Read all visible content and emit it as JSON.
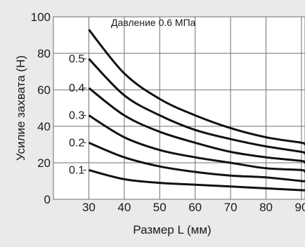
{
  "chart_data": {
    "type": "line",
    "annotation": "Давление 0.6 МПа",
    "xlabel": "Размер L (мм)",
    "ylabel": "Усилие захвата (Н)",
    "xlim": [
      20,
      91
    ],
    "ylim": [
      0,
      100
    ],
    "xticks": [
      "30",
      "40",
      "50",
      "60",
      "70",
      "80",
      "90"
    ],
    "yticks": [
      "0",
      "20",
      "40",
      "60",
      "80",
      "100"
    ],
    "grid": true,
    "colors": {
      "curve": "#111111",
      "grid": "#6f6f6f",
      "plot_bg": "#ffffff",
      "page_bg": "#e9eaec"
    },
    "series": [
      {
        "name": "",
        "x": [
          30,
          40,
          50,
          60,
          70,
          80,
          90,
          91
        ],
        "y": [
          93,
          69,
          55,
          46,
          39,
          34,
          31,
          30
        ]
      },
      {
        "name": "0.5",
        "x": [
          30,
          40,
          50,
          60,
          70,
          80,
          90,
          91
        ],
        "y": [
          77,
          57,
          46,
          38,
          33,
          29,
          26,
          25
        ]
      },
      {
        "name": "0.4",
        "x": [
          30,
          40,
          50,
          60,
          70,
          80,
          90,
          91
        ],
        "y": [
          61,
          46,
          37,
          31,
          26,
          23,
          21,
          20
        ]
      },
      {
        "name": "0.3",
        "x": [
          30,
          40,
          50,
          60,
          70,
          80,
          90,
          91
        ],
        "y": [
          46,
          34,
          27,
          23,
          20,
          17,
          16,
          15
        ]
      },
      {
        "name": "0.2",
        "x": [
          30,
          40,
          50,
          60,
          70,
          80,
          90,
          91
        ],
        "y": [
          31,
          23,
          18,
          15,
          13,
          12,
          10,
          10
        ]
      },
      {
        "name": "0.1",
        "x": [
          30,
          40,
          50,
          60,
          70,
          80,
          90,
          91
        ],
        "y": [
          16,
          11,
          9,
          8,
          7,
          6,
          5,
          5
        ]
      }
    ]
  }
}
